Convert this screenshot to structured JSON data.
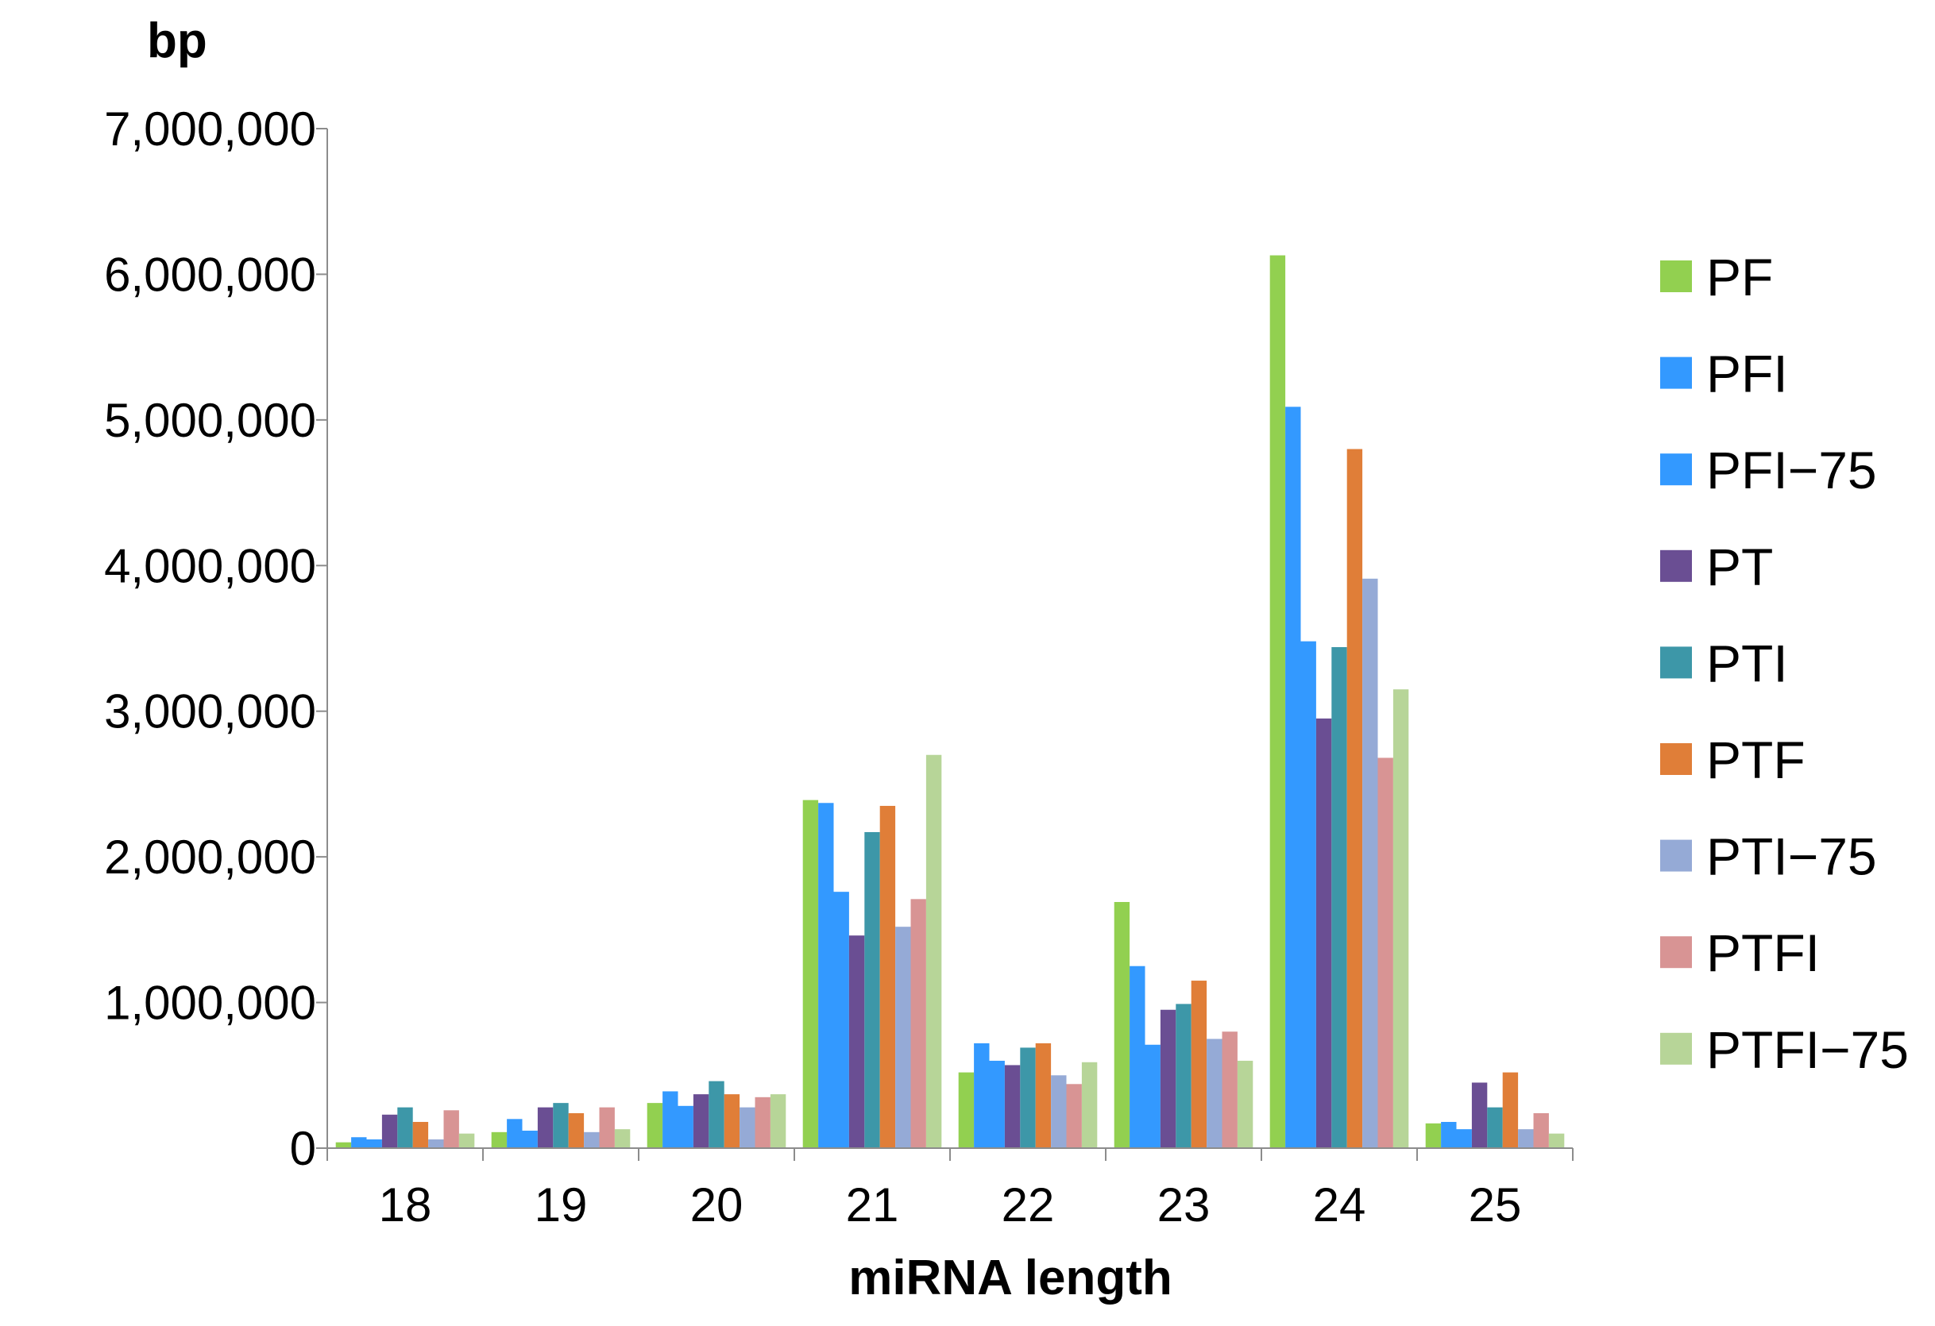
{
  "chart_data": {
    "type": "bar",
    "title": "",
    "xlabel": "miRNA length",
    "ylabel": "bp",
    "ylim": [
      0,
      7000000
    ],
    "yticks": [
      0,
      1000000,
      2000000,
      3000000,
      4000000,
      5000000,
      6000000,
      7000000
    ],
    "ytick_labels": [
      "0",
      "1,000,000",
      "2,000,000",
      "3,000,000",
      "4,000,000",
      "5,000,000",
      "6,000,000",
      "7,000,000"
    ],
    "categories": [
      "18",
      "19",
      "20",
      "21",
      "22",
      "23",
      "24",
      "25"
    ],
    "grid": false,
    "legend_position": "right",
    "series": [
      {
        "name": "PF",
        "color": "#92d050",
        "values": [
          40000,
          110000,
          310000,
          2390000,
          520000,
          1690000,
          6130000,
          170000
        ]
      },
      {
        "name": "PFI",
        "color": "#3399ff",
        "values": [
          75000,
          200000,
          390000,
          2370000,
          720000,
          1250000,
          5090000,
          180000
        ]
      },
      {
        "name": "PFI−75",
        "color": "#3399ff",
        "values": [
          60000,
          120000,
          290000,
          1760000,
          600000,
          710000,
          3480000,
          130000
        ]
      },
      {
        "name": "PT",
        "color": "#6a4e93",
        "values": [
          230000,
          280000,
          370000,
          1460000,
          570000,
          950000,
          2950000,
          450000
        ]
      },
      {
        "name": "PTI",
        "color": "#3d97a8",
        "values": [
          280000,
          310000,
          460000,
          2170000,
          690000,
          990000,
          3440000,
          280000
        ]
      },
      {
        "name": "PTF",
        "color": "#e07e38",
        "values": [
          180000,
          240000,
          370000,
          2350000,
          720000,
          1150000,
          4800000,
          520000
        ]
      },
      {
        "name": "PTI−75",
        "color": "#95aad6",
        "values": [
          60000,
          110000,
          280000,
          1520000,
          500000,
          750000,
          3910000,
          130000
        ]
      },
      {
        "name": "PTFI",
        "color": "#d89494",
        "values": [
          260000,
          280000,
          350000,
          1710000,
          440000,
          800000,
          2680000,
          240000
        ]
      },
      {
        "name": "PTFI−75",
        "color": "#b7d598",
        "values": [
          100000,
          130000,
          370000,
          2700000,
          590000,
          600000,
          3150000,
          100000
        ]
      }
    ]
  }
}
